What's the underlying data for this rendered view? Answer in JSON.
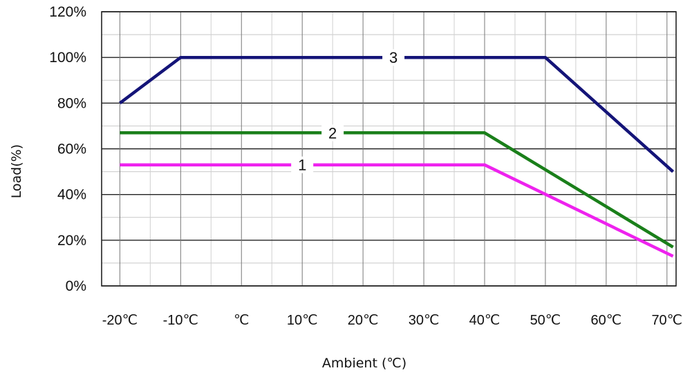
{
  "chart_data": {
    "type": "line",
    "xlabel": "Ambient (℃)",
    "ylabel": "Load(%)",
    "x_ticks": [
      -20,
      -10,
      0,
      10,
      20,
      30,
      40,
      50,
      60,
      70
    ],
    "x_tick_labels": [
      "-20℃",
      "-10℃",
      "℃",
      "10℃",
      "20℃",
      "30℃",
      "40℃",
      "50℃",
      "60℃",
      "70℃"
    ],
    "y_ticks": [
      0,
      20,
      40,
      60,
      80,
      100,
      120
    ],
    "y_tick_labels": [
      "0%",
      "20%",
      "40%",
      "60%",
      "80%",
      "100%",
      "120%"
    ],
    "xlim": [
      -23,
      71.5
    ],
    "ylim": [
      0,
      120
    ],
    "grid": true,
    "series": [
      {
        "name": "1",
        "color": "#ee22ee",
        "x": [
          -20,
          40,
          71
        ],
        "y": [
          53,
          53,
          13
        ]
      },
      {
        "name": "2",
        "color": "#1a7f1a",
        "x": [
          -20,
          40,
          71
        ],
        "y": [
          67,
          67,
          17
        ]
      },
      {
        "name": "3",
        "color": "#141478",
        "x": [
          -20,
          -10,
          50,
          71
        ],
        "y": [
          80,
          100,
          100,
          50
        ]
      }
    ],
    "series_label_x": [
      10,
      15,
      25
    ]
  }
}
